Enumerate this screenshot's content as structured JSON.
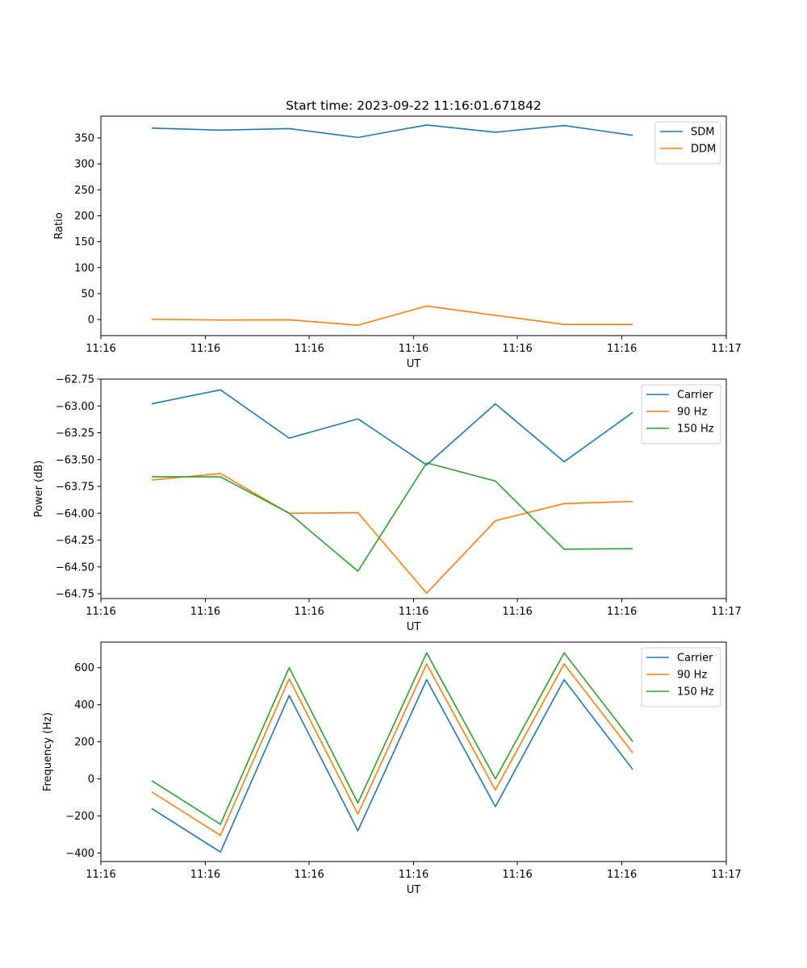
{
  "chart_data": [
    {
      "type": "line",
      "title": "Start time: 2023-09-22 11:16:01.671842",
      "xlabel": "UT",
      "ylabel": "Ratio",
      "x": [
        0,
        1,
        2,
        3,
        4,
        5,
        6,
        7
      ],
      "xlim": [
        -0.74,
        8.36
      ],
      "xticks": [
        -0.74,
        0.78,
        2.29,
        3.81,
        5.32,
        6.84,
        8.36
      ],
      "xtick_labels": [
        "11:16",
        "11:16",
        "11:16",
        "11:16",
        "11:16",
        "11:16",
        "11:17"
      ],
      "ylim": [
        -31,
        392
      ],
      "yticks": [
        0,
        50,
        100,
        150,
        200,
        250,
        300,
        350
      ],
      "ytick_labels": [
        "0",
        "50",
        "100",
        "150",
        "200",
        "250",
        "300",
        "350"
      ],
      "legend_position": "top-right",
      "series": [
        {
          "name": "SDM",
          "color": "#1f77b4",
          "values": [
            369,
            365,
            368,
            351,
            375,
            361,
            374,
            355
          ]
        },
        {
          "name": "DDM",
          "color": "#ff7f0e",
          "values": [
            0.5,
            -1,
            -0.5,
            -11,
            26,
            8,
            -9.5,
            -9.5
          ]
        }
      ]
    },
    {
      "type": "line",
      "title": "",
      "xlabel": "UT",
      "ylabel": "Power (dB)",
      "x": [
        0,
        1,
        2,
        3,
        4,
        5,
        6,
        7
      ],
      "xlim": [
        -0.74,
        8.36
      ],
      "xticks": [
        -0.74,
        0.78,
        2.29,
        3.81,
        5.32,
        6.84,
        8.36
      ],
      "xtick_labels": [
        "11:16",
        "11:16",
        "11:16",
        "11:16",
        "11:16",
        "11:16",
        "11:17"
      ],
      "ylim": [
        -64.795,
        -62.75
      ],
      "yticks": [
        -62.75,
        -63.0,
        -63.25,
        -63.5,
        -63.75,
        -64.0,
        -64.25,
        -64.5,
        -64.75
      ],
      "ytick_labels": [
        "−62.75",
        "−63.00",
        "−63.25",
        "−63.50",
        "−63.75",
        "−64.00",
        "−64.25",
        "−64.50",
        "−64.75"
      ],
      "legend_position": "top-right",
      "series": [
        {
          "name": "Carrier",
          "color": "#1f77b4",
          "values": [
            -62.98,
            -62.85,
            -63.3,
            -63.12,
            -63.55,
            -62.98,
            -63.52,
            -63.06
          ]
        },
        {
          "name": "90 Hz",
          "color": "#ff7f0e",
          "values": [
            -63.69,
            -63.63,
            -64.0,
            -63.995,
            -64.745,
            -64.07,
            -63.91,
            -63.89
          ]
        },
        {
          "name": "150 Hz",
          "color": "#2ca02c",
          "values": [
            -63.66,
            -63.66,
            -64.0,
            -64.54,
            -63.53,
            -63.7,
            -64.335,
            -64.33
          ]
        }
      ]
    },
    {
      "type": "line",
      "title": "",
      "xlabel": "UT",
      "ylabel": "Frequency (Hz)",
      "x": [
        0,
        1,
        2,
        3,
        4,
        5,
        6,
        7
      ],
      "xlim": [
        -0.74,
        8.36
      ],
      "xticks": [
        -0.74,
        0.78,
        2.29,
        3.81,
        5.32,
        6.84,
        8.36
      ],
      "xtick_labels": [
        "11:16",
        "11:16",
        "11:16",
        "11:16",
        "11:16",
        "11:16",
        "11:17"
      ],
      "ylim": [
        -446,
        738
      ],
      "yticks": [
        -400,
        -200,
        0,
        200,
        400,
        600
      ],
      "ytick_labels": [
        "−400",
        "−200",
        "0",
        "200",
        "400",
        "600"
      ],
      "legend_position": "top-right",
      "series": [
        {
          "name": "Carrier",
          "color": "#1f77b4",
          "values": [
            -160,
            -395,
            450,
            -280,
            535,
            -150,
            535,
            50
          ]
        },
        {
          "name": "90 Hz",
          "color": "#ff7f0e",
          "values": [
            -70,
            -305,
            540,
            -190,
            620,
            -60,
            620,
            140
          ]
        },
        {
          "name": "150 Hz",
          "color": "#2ca02c",
          "values": [
            -10,
            -245,
            600,
            -130,
            680,
            0,
            680,
            200
          ]
        }
      ]
    }
  ]
}
